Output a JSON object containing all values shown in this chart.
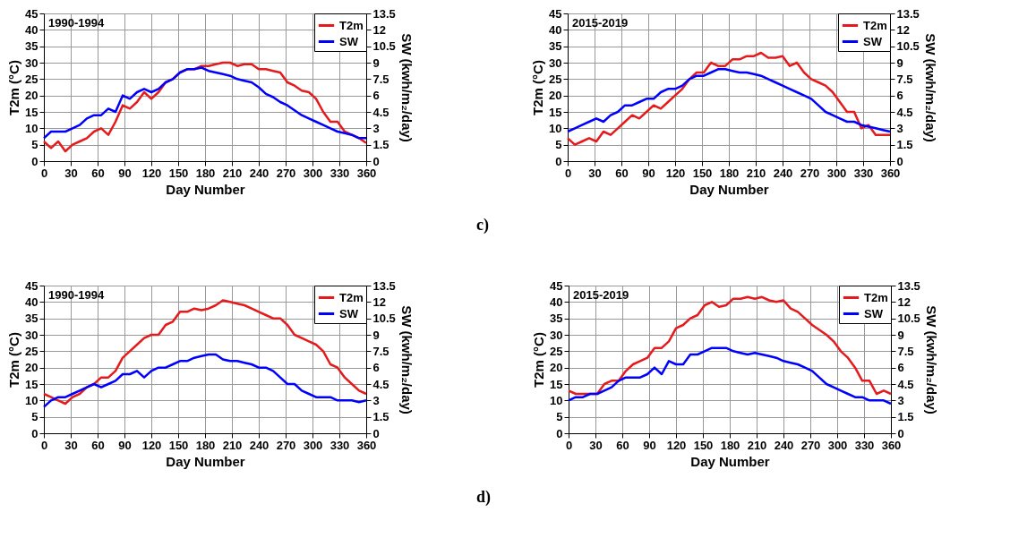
{
  "chart_data": [
    {
      "type": "line",
      "xlabel": "Day Number",
      "ylabel": "T2m (°C)",
      "y2label": "SW (kwh/m₂/day)",
      "annotations": [
        "1990-1994"
      ],
      "legend": "top right",
      "grid": true,
      "line_style": "solid",
      "x": [
        0,
        8,
        16,
        24,
        32,
        40,
        48,
        56,
        64,
        72,
        80,
        88,
        96,
        104,
        112,
        120,
        128,
        136,
        144,
        152,
        160,
        168,
        176,
        184,
        192,
        200,
        208,
        216,
        224,
        232,
        240,
        248,
        256,
        264,
        272,
        280,
        288,
        296,
        304,
        312,
        320,
        328,
        336,
        344,
        352,
        360
      ],
      "xlim": [
        0,
        360
      ],
      "xticks": [
        0,
        30,
        60,
        90,
        120,
        150,
        180,
        210,
        240,
        270,
        300,
        330,
        360
      ],
      "ylim": [
        0,
        45
      ],
      "yticks": [
        0,
        5,
        10,
        15,
        20,
        25,
        30,
        35,
        40,
        45
      ],
      "y2lim": [
        0,
        13.5
      ],
      "y2ticks": [
        0,
        1.5,
        3,
        4.5,
        6,
        7.5,
        9,
        10.5,
        12,
        13.5
      ],
      "series": [
        {
          "name": "T2m",
          "color": "#e41a1c",
          "values": [
            6,
            4,
            6,
            3,
            5,
            6,
            7,
            9,
            10,
            8,
            12,
            17,
            16,
            18,
            21,
            19,
            21,
            24,
            25,
            27,
            28,
            28,
            29,
            29,
            29.5,
            30,
            30,
            29,
            29.5,
            29.5,
            28,
            28,
            27.5,
            27,
            24,
            23,
            21.5,
            21,
            19,
            15,
            12,
            12,
            9,
            8,
            7,
            5.5
          ]
        },
        {
          "name": "SW",
          "color": "#0000ff",
          "axis": "y2",
          "values": [
            2.1,
            2.7,
            2.7,
            2.7,
            3.0,
            3.3,
            3.9,
            4.2,
            4.2,
            4.8,
            4.5,
            6.0,
            5.7,
            6.3,
            6.6,
            6.3,
            6.6,
            7.2,
            7.5,
            8.1,
            8.4,
            8.4,
            8.55,
            8.25,
            8.1,
            7.95,
            7.8,
            7.5,
            7.35,
            7.2,
            6.75,
            6.15,
            5.85,
            5.4,
            5.1,
            4.65,
            4.2,
            3.9,
            3.6,
            3.3,
            3.0,
            2.7,
            2.55,
            2.4,
            2.1,
            2.1
          ]
        }
      ]
    },
    {
      "type": "line",
      "xlabel": "Day Number",
      "ylabel": "T2m (°C)",
      "y2label": "SW (kwh/m₂/day)",
      "annotations": [
        "2015-2019",
        "c)"
      ],
      "legend": "top right",
      "grid": true,
      "line_style": "solid",
      "x": [
        0,
        8,
        16,
        24,
        32,
        40,
        48,
        56,
        64,
        72,
        80,
        88,
        96,
        104,
        112,
        120,
        128,
        136,
        144,
        152,
        160,
        168,
        176,
        184,
        192,
        200,
        208,
        216,
        224,
        232,
        240,
        248,
        256,
        264,
        272,
        280,
        288,
        296,
        304,
        312,
        320,
        328,
        336,
        344,
        352,
        360
      ],
      "xlim": [
        0,
        360
      ],
      "xticks": [
        0,
        30,
        60,
        90,
        120,
        150,
        180,
        210,
        240,
        270,
        300,
        330,
        360
      ],
      "ylim": [
        0,
        45
      ],
      "yticks": [
        0,
        5,
        10,
        15,
        20,
        25,
        30,
        35,
        40,
        45
      ],
      "y2lim": [
        0,
        13.5
      ],
      "y2ticks": [
        0,
        1.5,
        3,
        4.5,
        6,
        7.5,
        9,
        10.5,
        12,
        13.5
      ],
      "series": [
        {
          "name": "T2m",
          "color": "#e41a1c",
          "values": [
            7,
            5,
            6,
            7,
            6,
            9,
            8,
            10,
            12,
            14,
            13,
            15,
            17,
            16,
            18,
            20,
            22,
            25,
            27,
            27,
            30,
            29,
            29,
            31,
            31,
            32,
            32,
            33,
            31.5,
            31.5,
            32,
            29,
            30,
            27,
            25,
            24,
            23,
            21,
            18,
            15,
            15,
            10,
            11,
            8,
            8,
            8
          ]
        },
        {
          "name": "SW",
          "color": "#0000ff",
          "axis": "y2",
          "values": [
            2.7,
            3.0,
            3.3,
            3.6,
            3.9,
            3.6,
            4.2,
            4.5,
            5.1,
            5.1,
            5.4,
            5.7,
            5.7,
            6.3,
            6.6,
            6.6,
            6.9,
            7.5,
            7.8,
            7.8,
            8.1,
            8.4,
            8.4,
            8.25,
            8.1,
            8.1,
            7.95,
            7.8,
            7.5,
            7.2,
            6.9,
            6.6,
            6.3,
            6.0,
            5.7,
            5.1,
            4.5,
            4.2,
            3.9,
            3.6,
            3.6,
            3.3,
            3.15,
            3.0,
            2.85,
            2.7
          ]
        }
      ]
    },
    {
      "type": "line",
      "xlabel": "Day Number",
      "ylabel": "T2m (°C)",
      "y2label": "SW (kwh/m₂/day)",
      "annotations": [
        "1990-1994"
      ],
      "legend": "top right",
      "grid": true,
      "line_style": "solid",
      "x": [
        0,
        8,
        16,
        24,
        32,
        40,
        48,
        56,
        64,
        72,
        80,
        88,
        96,
        104,
        112,
        120,
        128,
        136,
        144,
        152,
        160,
        168,
        176,
        184,
        192,
        200,
        208,
        216,
        224,
        232,
        240,
        248,
        256,
        264,
        272,
        280,
        288,
        296,
        304,
        312,
        320,
        328,
        336,
        344,
        352,
        360
      ],
      "xlim": [
        0,
        360
      ],
      "xticks": [
        0,
        30,
        60,
        90,
        120,
        150,
        180,
        210,
        240,
        270,
        300,
        330,
        360
      ],
      "ylim": [
        0,
        45
      ],
      "yticks": [
        0,
        5,
        10,
        15,
        20,
        25,
        30,
        35,
        40,
        45
      ],
      "y2lim": [
        0,
        13.5
      ],
      "y2ticks": [
        0,
        1.5,
        3,
        4.5,
        6,
        7.5,
        9,
        10.5,
        12,
        13.5
      ],
      "series": [
        {
          "name": "T2m",
          "color": "#e41a1c",
          "values": [
            12,
            11,
            10,
            9,
            11,
            12,
            14,
            15,
            17,
            17,
            19,
            23,
            25,
            27,
            29,
            30,
            30,
            33,
            34,
            37,
            37,
            38,
            37.5,
            38,
            39,
            40.5,
            40,
            39.5,
            39,
            38,
            37,
            36,
            35,
            35,
            33,
            30,
            29,
            28,
            27,
            25,
            21,
            20,
            17,
            15,
            13,
            12
          ]
        },
        {
          "name": "SW",
          "color": "#0000ff",
          "axis": "y2",
          "values": [
            2.4,
            3.0,
            3.3,
            3.3,
            3.6,
            3.9,
            4.2,
            4.5,
            4.2,
            4.5,
            4.8,
            5.4,
            5.4,
            5.7,
            5.1,
            5.7,
            6.0,
            6.0,
            6.3,
            6.6,
            6.6,
            6.9,
            7.05,
            7.2,
            7.2,
            6.75,
            6.6,
            6.6,
            6.45,
            6.3,
            6.0,
            6.0,
            5.7,
            5.1,
            4.5,
            4.5,
            3.9,
            3.6,
            3.3,
            3.3,
            3.3,
            3.0,
            3.0,
            3.0,
            2.85,
            3.0
          ]
        }
      ]
    },
    {
      "type": "line",
      "xlabel": "Day Number",
      "ylabel": "T2m (°C)",
      "y2label": "SW (kwh/m₂/day)",
      "annotations": [
        "2015-2019",
        "d)"
      ],
      "legend": "top right",
      "grid": true,
      "line_style": "solid",
      "x": [
        0,
        8,
        16,
        24,
        32,
        40,
        48,
        56,
        64,
        72,
        80,
        88,
        96,
        104,
        112,
        120,
        128,
        136,
        144,
        152,
        160,
        168,
        176,
        184,
        192,
        200,
        208,
        216,
        224,
        232,
        240,
        248,
        256,
        264,
        272,
        280,
        288,
        296,
        304,
        312,
        320,
        328,
        336,
        344,
        352,
        360
      ],
      "xlim": [
        0,
        360
      ],
      "xticks": [
        0,
        30,
        60,
        90,
        120,
        150,
        180,
        210,
        240,
        270,
        300,
        330,
        360
      ],
      "ylim": [
        0,
        45
      ],
      "yticks": [
        0,
        5,
        10,
        15,
        20,
        25,
        30,
        35,
        40,
        45
      ],
      "y2lim": [
        0,
        13.5
      ],
      "y2ticks": [
        0,
        1.5,
        3,
        4.5,
        6,
        7.5,
        9,
        10.5,
        12,
        13.5
      ],
      "series": [
        {
          "name": "T2m",
          "color": "#e41a1c",
          "values": [
            13,
            12,
            12,
            12,
            12,
            15,
            16,
            16,
            19,
            21,
            22,
            23,
            26,
            26,
            28,
            32,
            33,
            35,
            36,
            39,
            40,
            38.5,
            39,
            41,
            41,
            41.5,
            41,
            41.5,
            40.5,
            40,
            40.5,
            38,
            37,
            35,
            33,
            31.5,
            30,
            28,
            25,
            23,
            20,
            16,
            16,
            12,
            13,
            12
          ]
        },
        {
          "name": "SW",
          "color": "#0000ff",
          "axis": "y2",
          "values": [
            3.0,
            3.3,
            3.3,
            3.6,
            3.6,
            3.9,
            4.2,
            4.8,
            5.1,
            5.1,
            5.1,
            5.4,
            6.0,
            5.4,
            6.6,
            6.3,
            6.3,
            7.2,
            7.2,
            7.5,
            7.8,
            7.8,
            7.8,
            7.5,
            7.35,
            7.2,
            7.35,
            7.2,
            7.05,
            6.9,
            6.6,
            6.45,
            6.3,
            6.0,
            5.7,
            5.1,
            4.5,
            4.2,
            3.9,
            3.6,
            3.3,
            3.3,
            3.0,
            3.0,
            3.0,
            2.7
          ]
        }
      ]
    }
  ]
}
